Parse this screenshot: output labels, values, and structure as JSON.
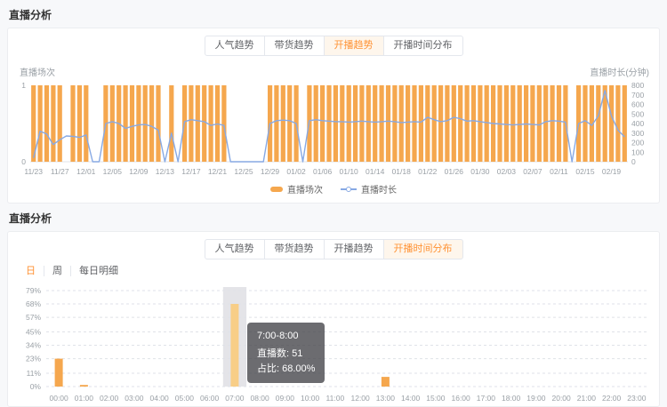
{
  "colors": {
    "accent": "#ff9234",
    "bar": "#f5a74e",
    "bar_highlight": "#f8ce87",
    "line": "#87a9e4",
    "band": "#e4e4e8",
    "grid": "#e0e3e8",
    "tick_text": "#9aa0a6"
  },
  "panel_top": {
    "title": "直播分析",
    "tabs": [
      {
        "label": "人气趋势",
        "active": false
      },
      {
        "label": "带货趋势",
        "active": false
      },
      {
        "label": "开播趋势",
        "active": true
      },
      {
        "label": "开播时间分布",
        "active": false
      }
    ]
  },
  "panel_bottom": {
    "title": "直播分析",
    "tabs": [
      {
        "label": "人气趋势",
        "active": false
      },
      {
        "label": "带货趋势",
        "active": false
      },
      {
        "label": "开播趋势",
        "active": false
      },
      {
        "label": "开播时间分布",
        "active": true
      }
    ],
    "view_toggle": [
      {
        "label": "日",
        "active": true
      },
      {
        "label": "周",
        "active": false
      },
      {
        "label": "每日明细",
        "active": false
      }
    ],
    "tooltip": {
      "title": "7:00-8:00",
      "line1": "直播数: 51",
      "line2": "占比: 68.00%"
    }
  },
  "chart_data": [
    {
      "type": "bar",
      "title": "开播趋势",
      "ylabel_left": "直播场次",
      "ylabel_right": "直播时长(分钟)",
      "ylim_left": [
        0,
        1
      ],
      "ylim_right": [
        0,
        800
      ],
      "yticks_left": [
        0,
        1
      ],
      "yticks_right": [
        0,
        100,
        200,
        300,
        400,
        500,
        600,
        700,
        800
      ],
      "x_tick_labels": [
        "11/23",
        "11/27",
        "12/01",
        "12/05",
        "12/09",
        "12/13",
        "12/17",
        "12/21",
        "12/25",
        "12/29",
        "01/02",
        "01/06",
        "01/10",
        "01/14",
        "01/18",
        "01/22",
        "01/26",
        "01/30",
        "02/03",
        "02/07",
        "02/11",
        "02/15",
        "02/19"
      ],
      "legend_position": "bottom",
      "grid": false,
      "x": [
        "11/23",
        "11/24",
        "11/25",
        "11/26",
        "11/27",
        "11/28",
        "11/29",
        "11/30",
        "12/01",
        "12/02",
        "12/03",
        "12/04",
        "12/05",
        "12/06",
        "12/07",
        "12/08",
        "12/09",
        "12/10",
        "12/11",
        "12/12",
        "12/13",
        "12/14",
        "12/15",
        "12/16",
        "12/17",
        "12/18",
        "12/19",
        "12/20",
        "12/21",
        "12/22",
        "12/23",
        "12/24",
        "12/25",
        "12/26",
        "12/27",
        "12/28",
        "12/29",
        "12/30",
        "12/31",
        "01/01",
        "01/02",
        "01/03",
        "01/04",
        "01/05",
        "01/06",
        "01/07",
        "01/08",
        "01/09",
        "01/10",
        "01/11",
        "01/12",
        "01/13",
        "01/14",
        "01/15",
        "01/16",
        "01/17",
        "01/18",
        "01/19",
        "01/20",
        "01/21",
        "01/22",
        "01/23",
        "01/24",
        "01/25",
        "01/26",
        "01/27",
        "01/28",
        "01/29",
        "01/30",
        "01/31",
        "02/01",
        "02/02",
        "02/03",
        "02/04",
        "02/05",
        "02/06",
        "02/07",
        "02/08",
        "02/09",
        "02/10",
        "02/11",
        "02/12",
        "02/13",
        "02/14",
        "02/15",
        "02/16",
        "02/17",
        "02/18",
        "02/19",
        "02/20",
        "02/21"
      ],
      "series": [
        {
          "name": "直播场次",
          "type": "bar",
          "axis": "left",
          "values": [
            1,
            1,
            1,
            1,
            1,
            0,
            1,
            1,
            1,
            0,
            0,
            1,
            1,
            1,
            1,
            1,
            1,
            1,
            1,
            1,
            0,
            1,
            0,
            1,
            1,
            1,
            1,
            1,
            1,
            1,
            0,
            0,
            0,
            0,
            0,
            0,
            1,
            1,
            1,
            1,
            1,
            0,
            1,
            1,
            1,
            1,
            1,
            1,
            1,
            1,
            1,
            1,
            1,
            1,
            1,
            1,
            1,
            1,
            1,
            1,
            1,
            1,
            1,
            1,
            1,
            1,
            1,
            1,
            1,
            1,
            1,
            1,
            1,
            1,
            1,
            1,
            1,
            1,
            1,
            1,
            1,
            1,
            0,
            1,
            1,
            1,
            1,
            1,
            1,
            1,
            1
          ]
        },
        {
          "name": "直播时长",
          "type": "line",
          "axis": "right",
          "values": [
            40,
            320,
            290,
            180,
            230,
            270,
            265,
            255,
            280,
            0,
            0,
            400,
            420,
            400,
            350,
            370,
            385,
            390,
            370,
            330,
            0,
            300,
            0,
            420,
            440,
            430,
            420,
            380,
            395,
            380,
            0,
            0,
            0,
            0,
            0,
            0,
            400,
            430,
            435,
            430,
            400,
            0,
            430,
            440,
            430,
            425,
            420,
            420,
            415,
            420,
            425,
            420,
            415,
            420,
            425,
            420,
            410,
            415,
            420,
            415,
            465,
            440,
            420,
            430,
            465,
            450,
            425,
            430,
            420,
            410,
            400,
            395,
            390,
            385,
            390,
            395,
            390,
            385,
            420,
            430,
            425,
            415,
            0,
            400,
            430,
            380,
            480,
            745,
            480,
            330,
            260
          ]
        }
      ]
    },
    {
      "type": "bar",
      "title": "开播时间分布",
      "categories": [
        "00:00",
        "01:00",
        "02:00",
        "03:00",
        "04:00",
        "05:00",
        "06:00",
        "07:00",
        "08:00",
        "09:00",
        "10:00",
        "11:00",
        "12:00",
        "13:00",
        "14:00",
        "15:00",
        "16:00",
        "17:00",
        "18:00",
        "19:00",
        "20:00",
        "21:00",
        "22:00",
        "23:00"
      ],
      "values": [
        23,
        1.3,
        0,
        0,
        0,
        0,
        0,
        68,
        0,
        0,
        0,
        0,
        0,
        8,
        0,
        0,
        0,
        0,
        0,
        0,
        0,
        0,
        0,
        0
      ],
      "yticks": [
        "0%",
        "11%",
        "23%",
        "34%",
        "45%",
        "57%",
        "68%",
        "79%"
      ],
      "ylim": [
        0,
        79
      ],
      "grid": "dashed-horizontal",
      "legend_position": "none",
      "highlight_index": 7,
      "highlight": {
        "hour_range": "7:00-8:00",
        "count": 51,
        "percent": "68.00%"
      }
    }
  ]
}
